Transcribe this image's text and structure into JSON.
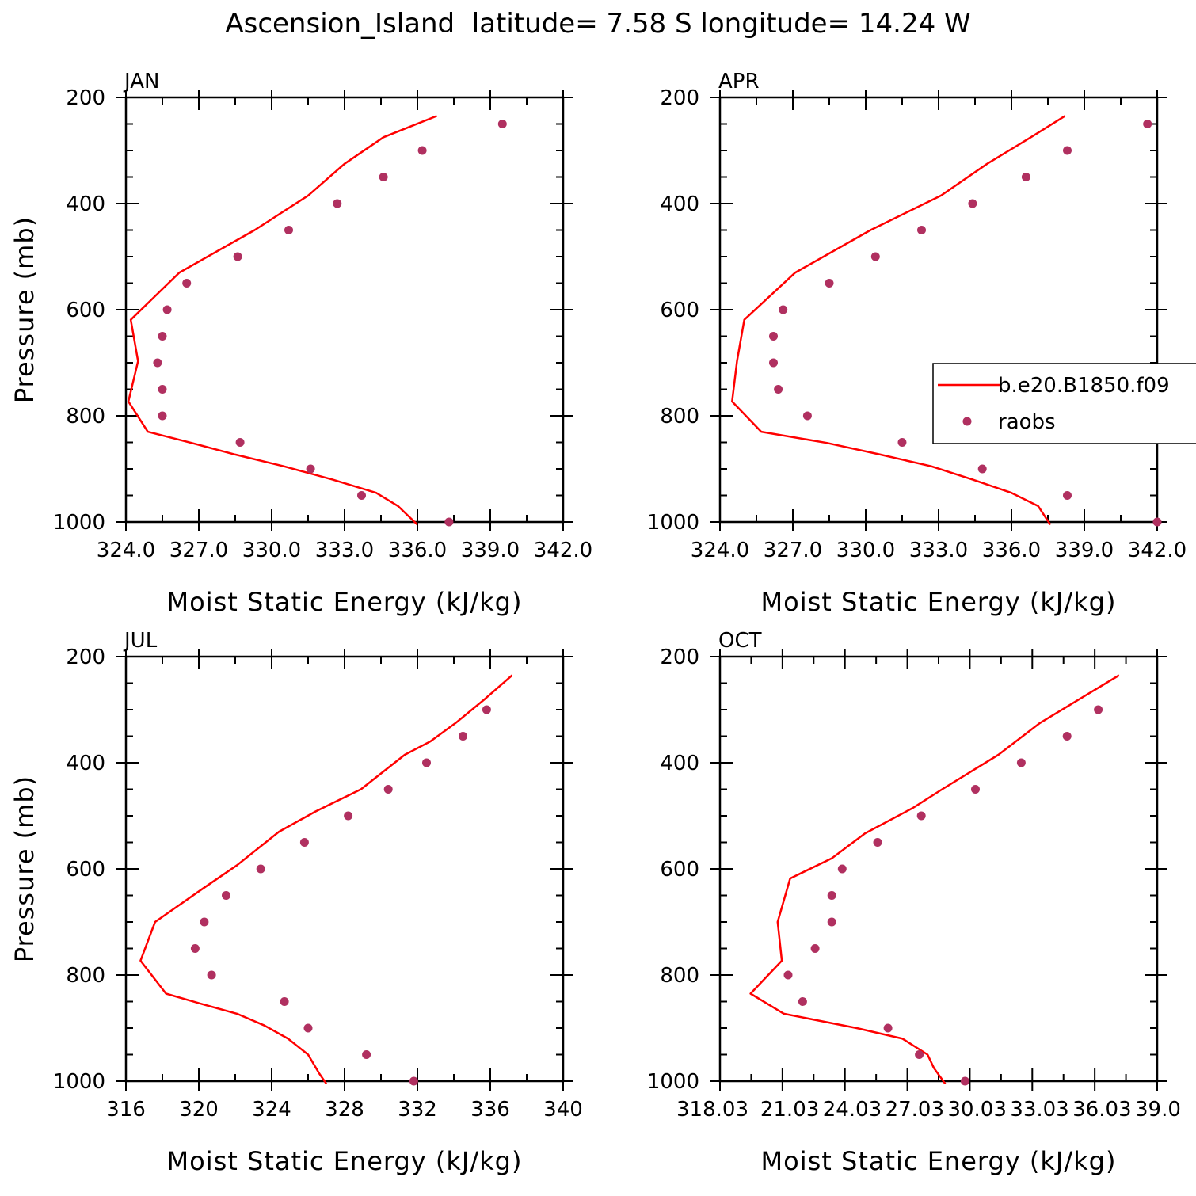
{
  "figure": {
    "title": "Ascension_Island  latitude= 7.58 S longitude= 14.24 W"
  },
  "chart_data": [
    {
      "type": "line",
      "panel_label": "JAN",
      "xlabel": "Moist Static Energy (kJ/kg)",
      "ylabel": "Pressure (mb)",
      "xlim": [
        324.0,
        342.0
      ],
      "xticks": [
        "324.0",
        "327.0",
        "330.0",
        "333.0",
        "336.0",
        "339.0",
        "342.0"
      ],
      "ylim": [
        1000,
        200
      ],
      "yticks": [
        "200",
        "400",
        "600",
        "800",
        "1000"
      ],
      "series": [
        {
          "name": "b.e20.B1850.f09",
          "kind": "line",
          "color": "#ff0000",
          "points": [
            [
              336.0,
              1005
            ],
            [
              335.2,
              970
            ],
            [
              334.3,
              945
            ],
            [
              332.5,
              920
            ],
            [
              330.5,
              895
            ],
            [
              328.5,
              873
            ],
            [
              326.7,
              851
            ],
            [
              324.9,
              830
            ],
            [
              324.1,
              773
            ],
            [
              324.5,
              697
            ],
            [
              324.2,
              619
            ],
            [
              326.2,
              530
            ],
            [
              329.3,
              450
            ],
            [
              331.5,
              385
            ],
            [
              333.0,
              325
            ],
            [
              334.6,
              275
            ],
            [
              336.8,
              235
            ]
          ]
        },
        {
          "name": "raobs",
          "kind": "scatter",
          "color": "#b03060",
          "points": [
            [
              337.3,
              1000
            ],
            [
              333.7,
              950
            ],
            [
              331.6,
              900
            ],
            [
              328.7,
              850
            ],
            [
              325.5,
              800
            ],
            [
              325.5,
              750
            ],
            [
              325.3,
              700
            ],
            [
              325.5,
              650
            ],
            [
              325.7,
              600
            ],
            [
              326.5,
              550
            ],
            [
              328.6,
              500
            ],
            [
              330.7,
              450
            ],
            [
              332.7,
              400
            ],
            [
              334.6,
              350
            ],
            [
              336.2,
              300
            ],
            [
              339.5,
              250
            ]
          ]
        }
      ]
    },
    {
      "type": "line",
      "panel_label": "APR",
      "xlabel": "Moist Static Energy (kJ/kg)",
      "ylabel": "",
      "xlim": [
        324.0,
        342.0
      ],
      "xticks": [
        "324.0",
        "327.0",
        "330.0",
        "333.0",
        "336.0",
        "339.0",
        "342.0"
      ],
      "ylim": [
        1000,
        200
      ],
      "yticks": [
        "200",
        "400",
        "600",
        "800",
        "1000"
      ],
      "legend": {
        "placement": "right",
        "entries": [
          "b.e20.B1850.f09",
          "raobs"
        ]
      },
      "series": [
        {
          "name": "b.e20.B1850.f09",
          "kind": "line",
          "color": "#ff0000",
          "points": [
            [
              337.6,
              1005
            ],
            [
              337.1,
              970
            ],
            [
              336.0,
              945
            ],
            [
              334.4,
              920
            ],
            [
              332.7,
              895
            ],
            [
              330.6,
              873
            ],
            [
              328.4,
              851
            ],
            [
              325.7,
              830
            ],
            [
              324.5,
              773
            ],
            [
              324.7,
              697
            ],
            [
              325.0,
              619
            ],
            [
              327.1,
              530
            ],
            [
              330.2,
              450
            ],
            [
              333.1,
              385
            ],
            [
              335.0,
              325
            ],
            [
              336.8,
              275
            ],
            [
              338.2,
              235
            ]
          ]
        },
        {
          "name": "raobs",
          "kind": "scatter",
          "color": "#b03060",
          "points": [
            [
              342.0,
              1000
            ],
            [
              338.3,
              950
            ],
            [
              334.8,
              900
            ],
            [
              331.5,
              850
            ],
            [
              327.6,
              800
            ],
            [
              326.4,
              750
            ],
            [
              326.2,
              700
            ],
            [
              326.2,
              650
            ],
            [
              326.6,
              600
            ],
            [
              328.5,
              550
            ],
            [
              330.4,
              500
            ],
            [
              332.3,
              450
            ],
            [
              334.4,
              400
            ],
            [
              336.6,
              350
            ],
            [
              338.3,
              300
            ],
            [
              341.6,
              250
            ]
          ]
        }
      ]
    },
    {
      "type": "line",
      "panel_label": "JUL",
      "xlabel": "Moist Static Energy (kJ/kg)",
      "ylabel": "Pressure (mb)",
      "xlim": [
        316,
        340
      ],
      "xticks": [
        "316",
        "320",
        "324",
        "328",
        "332",
        "336",
        "340"
      ],
      "ylim": [
        1000,
        200
      ],
      "yticks": [
        "200",
        "400",
        "600",
        "800",
        "1000"
      ],
      "series": [
        {
          "name": "b.e20.B1850.f09",
          "kind": "line",
          "color": "#ff0000",
          "points": [
            [
              327.0,
              1005
            ],
            [
              326.6,
              985
            ],
            [
              326.0,
              950
            ],
            [
              324.9,
              920
            ],
            [
              323.6,
              895
            ],
            [
              322.1,
              873
            ],
            [
              320.2,
              855
            ],
            [
              318.2,
              835
            ],
            [
              316.8,
              773
            ],
            [
              317.6,
              700
            ],
            [
              320.1,
              640
            ],
            [
              322.1,
              593
            ],
            [
              324.4,
              530
            ],
            [
              326.4,
              492
            ],
            [
              328.9,
              450
            ],
            [
              331.3,
              385
            ],
            [
              332.7,
              360
            ],
            [
              334.1,
              325
            ],
            [
              335.7,
              280
            ],
            [
              337.2,
              235
            ]
          ]
        },
        {
          "name": "raobs",
          "kind": "scatter",
          "color": "#b03060",
          "points": [
            [
              331.8,
              1000
            ],
            [
              329.2,
              950
            ],
            [
              326.0,
              900
            ],
            [
              324.7,
              850
            ],
            [
              320.7,
              800
            ],
            [
              319.8,
              750
            ],
            [
              320.3,
              700
            ],
            [
              321.5,
              650
            ],
            [
              323.4,
              600
            ],
            [
              325.8,
              550
            ],
            [
              328.2,
              500
            ],
            [
              330.4,
              450
            ],
            [
              332.5,
              400
            ],
            [
              334.5,
              350
            ],
            [
              335.8,
              300
            ]
          ]
        }
      ]
    },
    {
      "type": "line",
      "panel_label": "OCT",
      "xlabel": "Moist Static Energy (kJ/kg)",
      "ylabel": "",
      "xlim": [
        318.03,
        339.03
      ],
      "xticks": [
        "318.03",
        "21.03",
        "24.03",
        "27.03",
        "30.03",
        "33.03",
        "36.03",
        "39.0"
      ],
      "ylim": [
        1000,
        200
      ],
      "yticks": [
        "200",
        "400",
        "600",
        "800",
        "1000"
      ],
      "series": [
        {
          "name": "b.e20.B1850.f09",
          "kind": "line",
          "color": "#ff0000",
          "points": [
            [
              328.85,
              1005
            ],
            [
              328.3,
              975
            ],
            [
              328.0,
              950
            ],
            [
              326.8,
              920
            ],
            [
              324.6,
              900
            ],
            [
              321.1,
              873
            ],
            [
              319.5,
              835
            ],
            [
              321.0,
              773
            ],
            [
              320.8,
              700
            ],
            [
              321.4,
              618
            ],
            [
              323.4,
              580
            ],
            [
              325.0,
              533
            ],
            [
              327.3,
              485
            ],
            [
              328.7,
              450
            ],
            [
              331.4,
              385
            ],
            [
              333.4,
              325
            ],
            [
              335.3,
              280
            ],
            [
              337.2,
              235
            ]
          ]
        },
        {
          "name": "raobs",
          "kind": "scatter",
          "color": "#b03060",
          "points": [
            [
              329.8,
              1000
            ],
            [
              327.6,
              950
            ],
            [
              326.1,
              900
            ],
            [
              322.0,
              850
            ],
            [
              321.3,
              800
            ],
            [
              322.6,
              750
            ],
            [
              323.4,
              700
            ],
            [
              323.4,
              650
            ],
            [
              323.9,
              600
            ],
            [
              325.6,
              550
            ],
            [
              327.7,
              500
            ],
            [
              330.3,
              450
            ],
            [
              332.5,
              400
            ],
            [
              334.7,
              350
            ],
            [
              336.2,
              300
            ]
          ]
        }
      ]
    }
  ]
}
